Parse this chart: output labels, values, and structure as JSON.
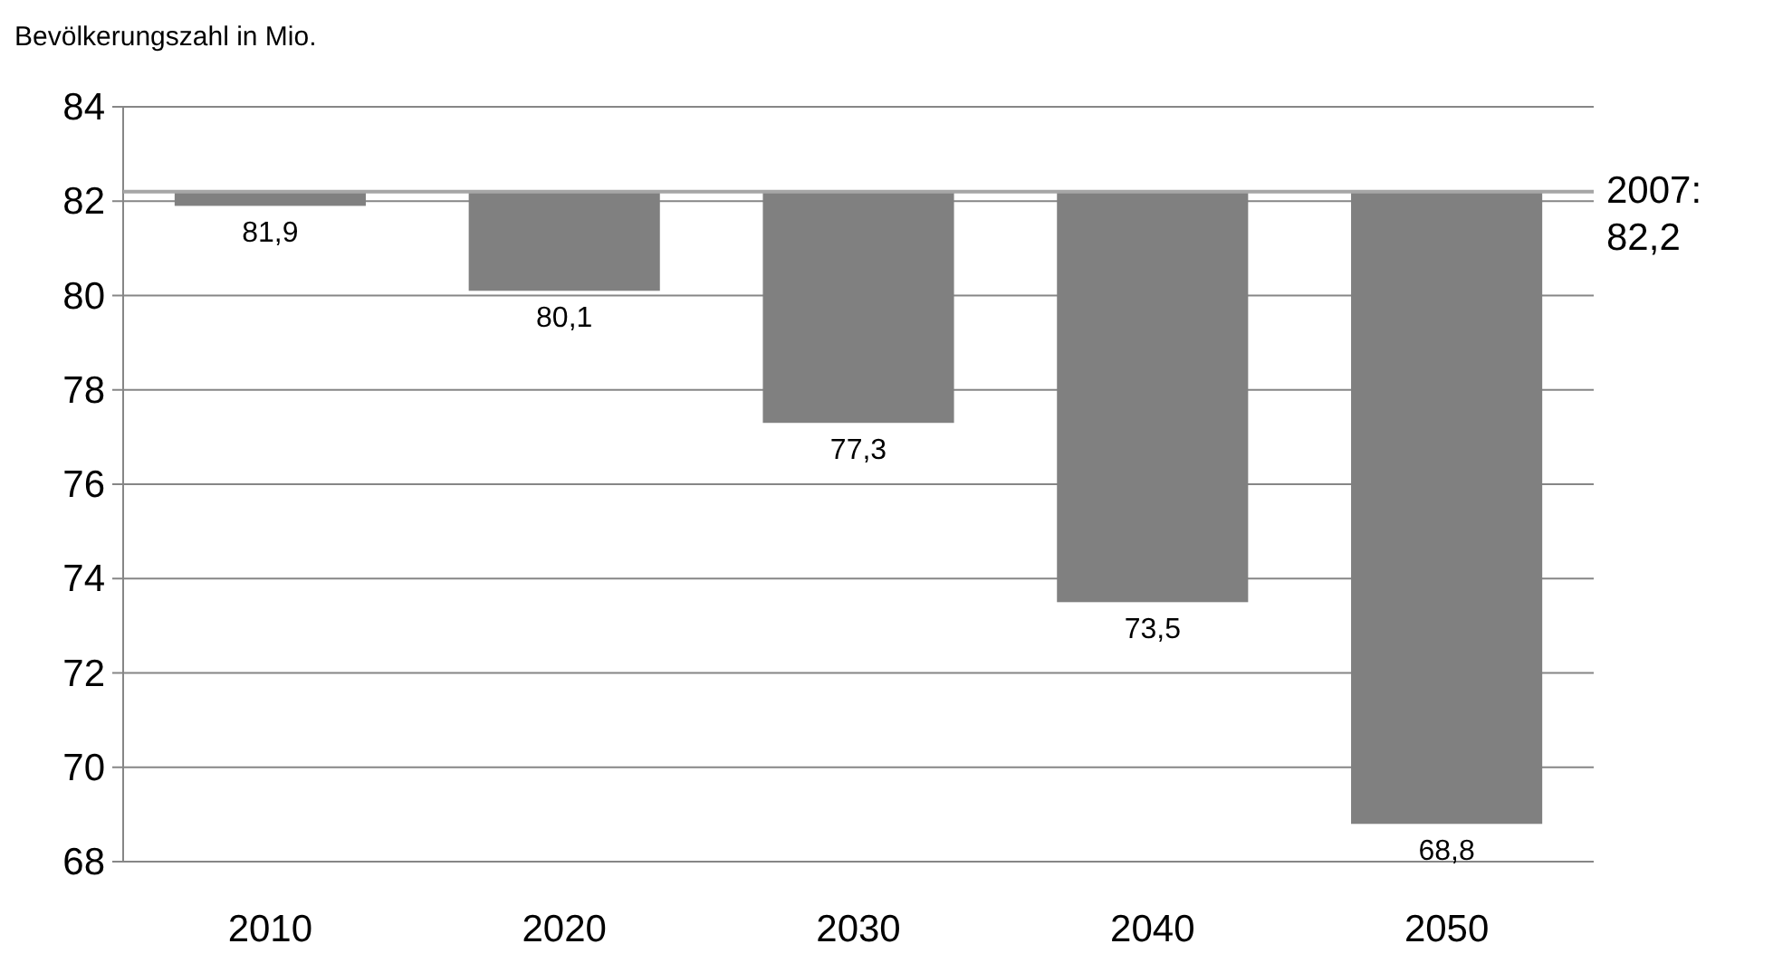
{
  "chart_data": {
    "type": "bar",
    "ylabel": "Bevölkerungszahl in Mio.",
    "categories": [
      "2010",
      "2020",
      "2030",
      "2040",
      "2050"
    ],
    "base": [
      82.2,
      82.2,
      82.2,
      82.2,
      82.2
    ],
    "values": [
      -0.3,
      -2.1,
      -4.9,
      -8.7,
      -13.4
    ],
    "value_labels": [
      "81,9",
      "80,1",
      "77,3",
      "73,5",
      "68,8"
    ],
    "color": "#808080",
    "ylim": [
      68,
      84
    ],
    "yticks": [
      68,
      70,
      72,
      74,
      76,
      78,
      80,
      82,
      84
    ],
    "grid": "y",
    "ref_lines": [
      {
        "axis": "y",
        "value": 82.2,
        "label": "2007: 82,2",
        "color": "#a6a6a6"
      }
    ]
  }
}
